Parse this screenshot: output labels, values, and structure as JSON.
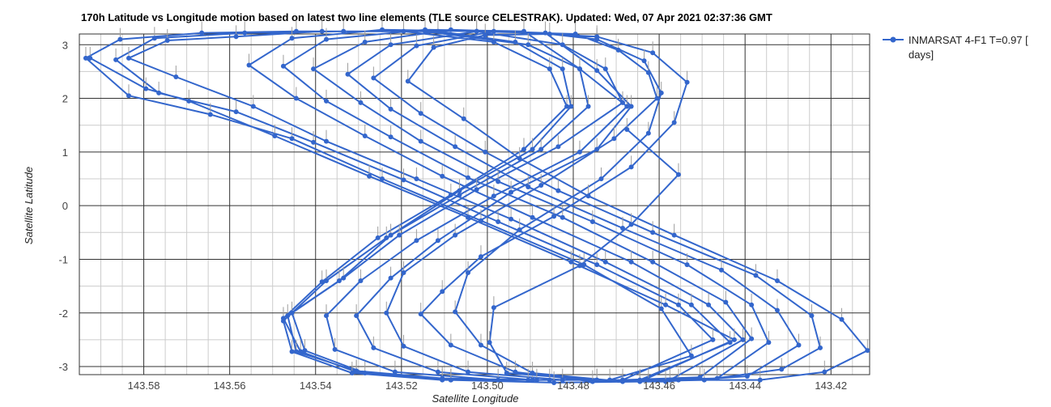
{
  "chart_data": {
    "type": "line",
    "title": "170h Latitude vs Longitude motion based on latest two line elements (TLE source CELESTRAK). Updated: Wed, 07 Apr 2021 02:37:36 GMT",
    "xlabel": "Satellite Longitude",
    "ylabel": "Satellite Latitude",
    "x_reversed": true,
    "xlim": [
      143.411,
      143.595
    ],
    "ylim": [
      -3.15,
      3.2
    ],
    "x_ticks": [
      143.58,
      143.56,
      143.54,
      143.52,
      143.5,
      143.48,
      143.46,
      143.44,
      143.42
    ],
    "x_tick_labels": [
      "143.58",
      "143.56",
      "143.54",
      "143.52",
      "143.50",
      "143.48",
      "143.46",
      "143.44",
      "143.42"
    ],
    "y_ticks": [
      3,
      2,
      1,
      0,
      -1,
      -2,
      -3
    ],
    "y_tick_labels": [
      "3",
      "2",
      "1",
      "0",
      "-1",
      "-2",
      "-3"
    ],
    "grid": true,
    "legend_position": "right",
    "series": [
      {
        "name": "INMARSAT 4-F1 T=0.97 [ days]",
        "color": "#3366cc",
        "points": [
          [
            143.4675,
            1.42
          ],
          [
            143.4555,
            0.58
          ],
          [
            143.4665,
            -0.35
          ],
          [
            143.4785,
            -1.12
          ],
          [
            143.4985,
            -1.9
          ],
          [
            143.4995,
            -2.55
          ],
          [
            143.4955,
            -3.12
          ],
          [
            143.4745,
            -3.25
          ],
          [
            143.4555,
            -3.25
          ],
          [
            143.4365,
            -3.25
          ],
          [
            143.4215,
            -3.1
          ],
          [
            143.4115,
            -2.7
          ],
          [
            143.4175,
            -2.12
          ],
          [
            143.4325,
            -1.4
          ],
          [
            143.4565,
            -0.55
          ],
          [
            143.4765,
            0.18
          ],
          [
            143.4925,
            0.88
          ],
          [
            143.5055,
            1.62
          ],
          [
            143.5185,
            2.32
          ],
          [
            143.5125,
            2.95
          ],
          [
            143.5005,
            3.18
          ],
          [
            143.4855,
            3.2
          ],
          [
            143.4745,
            3.1
          ],
          [
            143.4635,
            2.7
          ],
          [
            143.4595,
            2.1
          ],
          [
            143.4625,
            1.35
          ],
          [
            143.4735,
            0.5
          ],
          [
            143.4925,
            -0.45
          ],
          [
            143.5045,
            -1.25
          ],
          [
            143.5075,
            -1.98
          ],
          [
            143.5015,
            -2.6
          ],
          [
            143.4895,
            -3.12
          ],
          [
            143.4685,
            -3.28
          ],
          [
            143.4495,
            -3.25
          ],
          [
            143.4315,
            -3.05
          ],
          [
            143.4225,
            -2.65
          ],
          [
            143.4245,
            -2.05
          ],
          [
            143.4375,
            -1.3
          ],
          [
            143.4615,
            -0.5
          ],
          [
            143.4835,
            0.28
          ],
          [
            143.5005,
            1.0
          ],
          [
            143.5155,
            1.72
          ],
          [
            143.5265,
            2.38
          ],
          [
            143.5165,
            2.98
          ],
          [
            143.4985,
            3.25
          ],
          [
            143.4745,
            3.15
          ],
          [
            143.4615,
            2.85
          ],
          [
            143.4535,
            2.3
          ],
          [
            143.4565,
            1.55
          ],
          [
            143.4665,
            0.72
          ],
          [
            143.4845,
            -0.2
          ],
          [
            143.5015,
            -0.95
          ],
          [
            143.5105,
            -1.6
          ],
          [
            143.5155,
            -2.02
          ],
          [
            143.5085,
            -2.6
          ],
          [
            143.4935,
            -3.1
          ],
          [
            143.4755,
            -3.28
          ],
          [
            143.4585,
            -3.28
          ],
          [
            143.4395,
            -3.18
          ],
          [
            143.4275,
            -2.6
          ],
          [
            143.4325,
            -1.95
          ],
          [
            143.4455,
            -1.2
          ],
          [
            143.4685,
            -0.42
          ],
          [
            143.4905,
            0.35
          ],
          [
            143.5075,
            1.1
          ],
          [
            143.5225,
            1.8
          ],
          [
            143.5325,
            2.45
          ],
          [
            143.5225,
            3.0
          ],
          [
            143.5025,
            3.25
          ],
          [
            143.4795,
            3.2
          ],
          [
            143.4695,
            2.9
          ],
          [
            143.4625,
            2.48
          ],
          [
            143.4605,
            2.0
          ],
          [
            143.4705,
            1.25
          ],
          [
            143.4875,
            0.38
          ],
          [
            143.5075,
            -0.55
          ],
          [
            143.5195,
            -1.25
          ],
          [
            143.5235,
            -2.0
          ],
          [
            143.5195,
            -2.62
          ],
          [
            143.5045,
            -3.1
          ],
          [
            143.4825,
            -3.25
          ],
          [
            143.4625,
            -3.25
          ],
          [
            143.4465,
            -3.22
          ],
          [
            143.4345,
            -2.55
          ],
          [
            143.4385,
            -1.85
          ],
          [
            143.4535,
            -1.1
          ],
          [
            143.4755,
            -0.3
          ],
          [
            143.4975,
            0.45
          ],
          [
            143.5155,
            1.2
          ],
          [
            143.5295,
            1.92
          ],
          [
            143.5405,
            2.55
          ],
          [
            143.5285,
            3.05
          ],
          [
            143.5085,
            3.28
          ],
          [
            143.4865,
            3.22
          ],
          [
            143.4745,
            2.52
          ],
          [
            143.4665,
            1.85
          ],
          [
            143.4745,
            1.05
          ],
          [
            143.4945,
            0.25
          ],
          [
            143.5115,
            -0.65
          ],
          [
            143.5225,
            -1.35
          ],
          [
            143.5305,
            -2.05
          ],
          [
            143.5265,
            -2.65
          ],
          [
            143.5115,
            -3.1
          ],
          [
            143.4895,
            -3.25
          ],
          [
            143.4685,
            -3.25
          ],
          [
            143.4505,
            -3.2
          ],
          [
            143.4385,
            -2.48
          ],
          [
            143.4445,
            -1.8
          ],
          [
            143.4615,
            -1.05
          ],
          [
            143.4825,
            -0.22
          ],
          [
            143.5045,
            0.52
          ],
          [
            143.5225,
            1.28
          ],
          [
            143.5375,
            1.95
          ],
          [
            143.5475,
            2.6
          ],
          [
            143.5375,
            3.1
          ],
          [
            143.5145,
            3.28
          ],
          [
            143.4915,
            3.25
          ],
          [
            143.4785,
            2.55
          ],
          [
            143.4675,
            1.85
          ],
          [
            143.4785,
            1.0
          ],
          [
            143.4985,
            0.18
          ],
          [
            143.5165,
            -0.65
          ],
          [
            143.5295,
            -1.4
          ],
          [
            143.5375,
            -2.05
          ],
          [
            143.5355,
            -2.68
          ],
          [
            143.5215,
            -3.1
          ],
          [
            143.4975,
            -3.25
          ],
          [
            143.4745,
            -3.25
          ],
          [
            143.4575,
            -3.25
          ],
          [
            143.4405,
            -2.5
          ],
          [
            143.4485,
            -1.85
          ],
          [
            143.4665,
            -1.05
          ],
          [
            143.4895,
            -0.22
          ],
          [
            143.5105,
            0.55
          ],
          [
            143.5285,
            1.3
          ],
          [
            143.5445,
            2.0
          ],
          [
            143.5555,
            2.62
          ],
          [
            143.5455,
            3.12
          ],
          [
            143.5245,
            3.28
          ],
          [
            143.5025,
            3.25
          ],
          [
            143.4825,
            3.0
          ],
          [
            143.4725,
            2.55
          ],
          [
            143.4685,
            1.92
          ],
          [
            143.4835,
            1.1
          ],
          [
            143.5025,
            0.3
          ],
          [
            143.5205,
            -0.55
          ],
          [
            143.5335,
            -1.35
          ],
          [
            143.5455,
            -2.0
          ],
          [
            143.5425,
            -2.7
          ],
          [
            143.5285,
            -3.12
          ],
          [
            143.5085,
            -3.25
          ],
          [
            143.4855,
            -3.25
          ],
          [
            143.4645,
            -3.25
          ],
          [
            143.4435,
            -2.55
          ],
          [
            143.4525,
            -1.85
          ],
          [
            143.4725,
            -1.05
          ],
          [
            143.4945,
            -0.25
          ],
          [
            143.5165,
            0.5
          ],
          [
            143.5375,
            1.2
          ],
          [
            143.5545,
            1.85
          ],
          [
            143.5725,
            2.4
          ],
          [
            143.5835,
            2.75
          ],
          [
            143.5745,
            3.08
          ],
          [
            143.5585,
            3.15
          ],
          [
            143.5385,
            3.25
          ],
          [
            143.5145,
            3.25
          ],
          [
            143.4905,
            3.0
          ],
          [
            143.4785,
            2.55
          ],
          [
            143.4765,
            1.85
          ],
          [
            143.4875,
            1.05
          ],
          [
            143.5065,
            0.2
          ],
          [
            143.5235,
            -0.6
          ],
          [
            143.5375,
            -1.4
          ],
          [
            143.5475,
            -2.15
          ],
          [
            143.5455,
            -2.72
          ],
          [
            143.5315,
            -3.12
          ],
          [
            143.5105,
            -3.25
          ],
          [
            143.4885,
            -3.25
          ],
          [
            143.4685,
            -3.25
          ],
          [
            143.4475,
            -2.5
          ],
          [
            143.4555,
            -1.85
          ],
          [
            143.4745,
            -1.1
          ],
          [
            143.4975,
            -0.3
          ],
          [
            143.5195,
            0.48
          ],
          [
            143.5405,
            1.18
          ],
          [
            143.5585,
            1.75
          ],
          [
            143.5765,
            2.1
          ],
          [
            143.5865,
            2.72
          ],
          [
            143.5775,
            3.12
          ],
          [
            143.5565,
            3.22
          ],
          [
            143.5335,
            3.25
          ],
          [
            143.5115,
            3.25
          ],
          [
            143.4935,
            3.05
          ],
          [
            143.4825,
            2.55
          ],
          [
            143.4805,
            1.85
          ],
          [
            143.4895,
            1.05
          ],
          [
            143.5065,
            0.28
          ],
          [
            143.5225,
            -0.55
          ],
          [
            143.5345,
            -1.4
          ],
          [
            143.5465,
            -2.05
          ],
          [
            143.5445,
            -2.72
          ],
          [
            143.5305,
            -3.08
          ],
          [
            143.5105,
            -3.22
          ],
          [
            143.4905,
            -3.25
          ],
          [
            143.4715,
            -3.25
          ],
          [
            143.4525,
            -2.8
          ],
          [
            143.4595,
            -1.92
          ],
          [
            143.4775,
            -1.1
          ],
          [
            143.5015,
            -0.28
          ],
          [
            143.5245,
            0.5
          ],
          [
            143.5455,
            1.25
          ],
          [
            143.5645,
            1.7
          ],
          [
            143.5835,
            2.05
          ],
          [
            143.5935,
            2.75
          ],
          [
            143.5855,
            3.1
          ],
          [
            143.5665,
            3.22
          ],
          [
            143.5445,
            3.25
          ],
          [
            143.5195,
            3.25
          ],
          [
            143.4985,
            3.05
          ],
          [
            143.4855,
            2.55
          ],
          [
            143.4815,
            1.85
          ],
          [
            143.4915,
            1.05
          ],
          [
            143.5085,
            0.2
          ],
          [
            143.5255,
            -0.6
          ],
          [
            143.5385,
            -1.42
          ],
          [
            143.5475,
            -2.1
          ],
          [
            143.5435,
            -2.72
          ],
          [
            143.5305,
            -3.1
          ],
          [
            143.5085,
            -3.25
          ],
          [
            143.4845,
            -3.3
          ],
          [
            143.4645,
            -3.28
          ],
          [
            143.4425,
            -2.5
          ],
          [
            143.4585,
            -1.85
          ],
          [
            143.4805,
            -1.05
          ],
          [
            143.5045,
            -0.22
          ],
          [
            143.5275,
            0.55
          ],
          [
            143.5495,
            1.3
          ],
          [
            143.5695,
            1.95
          ],
          [
            143.5795,
            2.18
          ],
          [
            143.5925,
            2.75
          ]
        ]
      }
    ]
  }
}
